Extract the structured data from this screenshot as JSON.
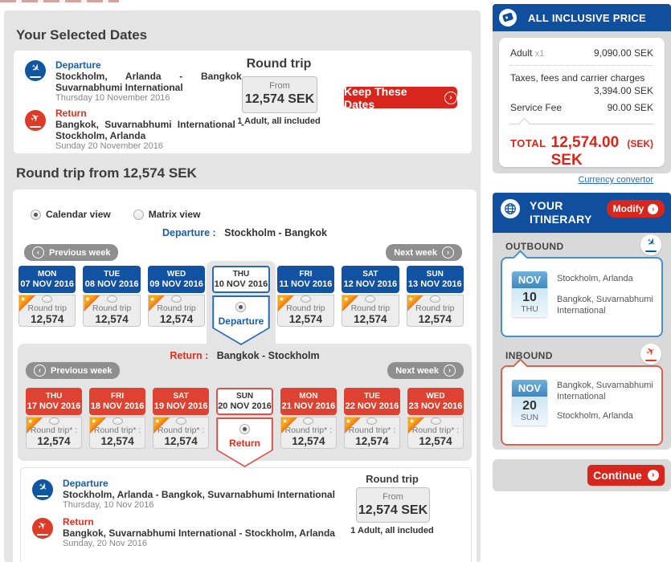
{
  "colors": {
    "brand_blue": "#0f4f9e",
    "button_red": "#d9261c",
    "day_blue": "#1252a2",
    "day_red": "#de4331",
    "link_blue": "#2a6db5",
    "week_btn_gray": "#8f8f8f",
    "accent_blue_border": "#4a90c8",
    "accent_red_border": "#dd5f4f"
  },
  "selected_dates": {
    "heading": "Your Selected Dates",
    "departure": {
      "label": "Departure",
      "route": "Stockholm, Arlanda - Bangkok, Suvarnabhumi International",
      "date": "Thursday 10 November 2016"
    },
    "return": {
      "label": "Return",
      "route": "Bangkok, Suvarnabhumi International - Stockholm, Arlanda",
      "date": "Sunday 20 November 2016"
    },
    "trip": {
      "type": "Round trip",
      "from_label": "From",
      "price": "12,574 SEK",
      "note": "1 Adult, all included"
    },
    "keep_button": "Keep These Dates"
  },
  "calendar": {
    "heading": "Round trip from 12,574 SEK",
    "views": [
      {
        "label": "Calendar view",
        "selected": true
      },
      {
        "label": "Matrix view",
        "selected": false
      }
    ],
    "departure": {
      "label_prefix": "Departure :",
      "label_route": "Stockholm - Bangkok",
      "prev": "Previous week",
      "next": "Next week",
      "cell_label": "Round trip",
      "selected_label": "Departure",
      "days": [
        {
          "dow": "MON",
          "date": "07 NOV 2016",
          "price": "12,574"
        },
        {
          "dow": "TUE",
          "date": "08 NOV 2016",
          "price": "12,574"
        },
        {
          "dow": "WED",
          "date": "09 NOV 2016",
          "price": "12,574"
        },
        {
          "dow": "THU",
          "date": "10 NOV 2016",
          "selected": true
        },
        {
          "dow": "FRI",
          "date": "11 NOV 2016",
          "price": "12,574"
        },
        {
          "dow": "SAT",
          "date": "12 NOV 2016",
          "price": "12,574"
        },
        {
          "dow": "SUN",
          "date": "13 NOV 2016",
          "price": "12,574"
        }
      ]
    },
    "return": {
      "label_prefix": "Return :",
      "label_route": "Bangkok - Stockholm",
      "prev": "Previous week",
      "next": "Next week",
      "cell_label": "Round trip* :",
      "selected_label": "Return",
      "days": [
        {
          "dow": "THU",
          "date": "17 NOV 2016",
          "price": "12,574"
        },
        {
          "dow": "FRI",
          "date": "18 NOV 2016",
          "price": "12,574"
        },
        {
          "dow": "SAT",
          "date": "19 NOV 2016",
          "price": "12,574"
        },
        {
          "dow": "SUN",
          "date": "20 NOV 2016",
          "selected": true
        },
        {
          "dow": "MON",
          "date": "21 NOV 2016",
          "price": "12,574"
        },
        {
          "dow": "TUE",
          "date": "22 NOV 2016",
          "price": "12,574"
        },
        {
          "dow": "WED",
          "date": "23 NOV 2016",
          "price": "12,574"
        }
      ]
    },
    "summary": {
      "departure": {
        "label": "Departure",
        "route": "Stockholm, Arlanda - Bangkok, Suvarnabhumi International",
        "date": "Thursday, 10 Nov 2016"
      },
      "return": {
        "label": "Return",
        "route": "Bangkok, Suvarnabhumi International - Stockholm, Arlanda",
        "date": "Sunday, 20 Nov 2016"
      },
      "trip": {
        "type": "Round trip",
        "from_label": "From",
        "price": "12,574 SEK",
        "note": "1 Adult, all included"
      }
    }
  },
  "sidebar": {
    "price_panel": {
      "title": "ALL INCLUSIVE PRICE",
      "adult_label": "Adult",
      "adult_qty": "x1",
      "adult_value": "9,090.00 SEK",
      "taxes_label": "Taxes, fees and carrier charges",
      "taxes_value": "3,394.00 SEK",
      "service_label": "Service Fee",
      "service_value": "90.00 SEK",
      "total_label": "TOTAL",
      "total_value": "12,574.00 SEK",
      "total_currency": "(SEK)",
      "link": "Currency convertor"
    },
    "itinerary_panel": {
      "title": "YOUR ITINERARY",
      "modify_button": "Modify",
      "outbound_label": "OUTBOUND",
      "outbound": {
        "month": "NOV",
        "day": "10",
        "dow": "THU",
        "from": "Stockholm, Arlanda",
        "to": "Bangkok, Suvarnabhumi International"
      },
      "inbound_label": "INBOUND",
      "inbound": {
        "month": "NOV",
        "day": "20",
        "dow": "SUN",
        "from": "Bangkok, Suvarnabhumi International",
        "to": "Stockholm, Arlanda"
      }
    },
    "continue_button": "Continue"
  }
}
